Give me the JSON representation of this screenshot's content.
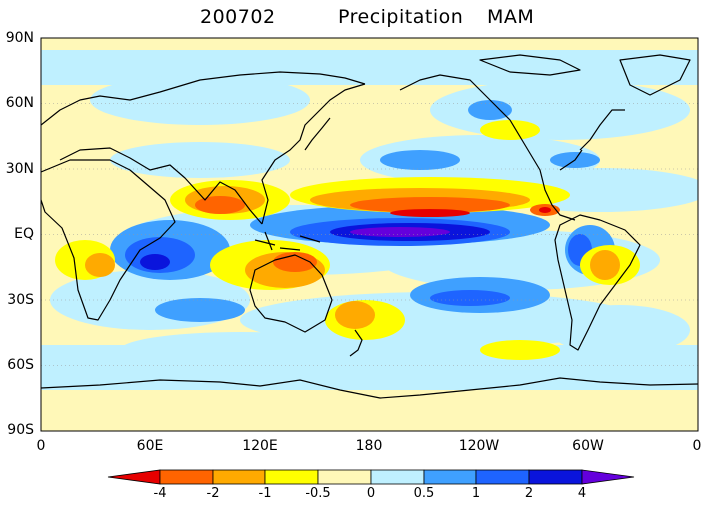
{
  "title": {
    "left": "200702",
    "middle": "Precipitation",
    "right": "MAM"
  },
  "map": {
    "projection": "cylindrical equidistant, 0 to 360 longitude",
    "lat_labels": [
      "90N",
      "60N",
      "30N",
      "EQ",
      "30S",
      "60S",
      "90S"
    ],
    "lon_labels": [
      "0",
      "60E",
      "120E",
      "180",
      "120W",
      "60W",
      "0"
    ],
    "background_color": "#fff8b8",
    "coastline_color": "#000000"
  },
  "colorbar": {
    "labels": [
      "-4",
      "-2",
      "-1",
      "-0.5",
      "0",
      "0.5",
      "1",
      "2",
      "4"
    ],
    "colors": [
      "#e60000",
      "#ff6400",
      "#ffaa00",
      "#ffff00",
      "#fff8b8",
      "#bff0ff",
      "#3fa0ff",
      "#1e64ff",
      "#0a14dc",
      "#6400dc"
    ],
    "left_arrow_color": "#e60000",
    "right_arrow_color": "#6400dc"
  }
}
